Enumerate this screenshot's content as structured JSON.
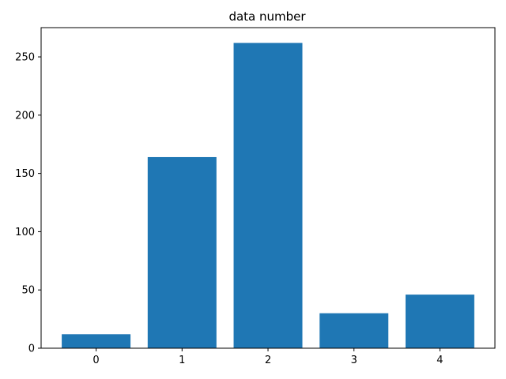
{
  "chart_data": {
    "type": "bar",
    "title": "data number",
    "xlabel": "",
    "ylabel": "",
    "categories": [
      "0",
      "1",
      "2",
      "3",
      "4"
    ],
    "values": [
      12,
      164,
      262,
      30,
      46
    ],
    "ylim": [
      0,
      275.1
    ],
    "yticks": [
      0,
      50,
      100,
      150,
      200,
      250
    ],
    "grid": false,
    "bar_color": "#1f77b4"
  }
}
